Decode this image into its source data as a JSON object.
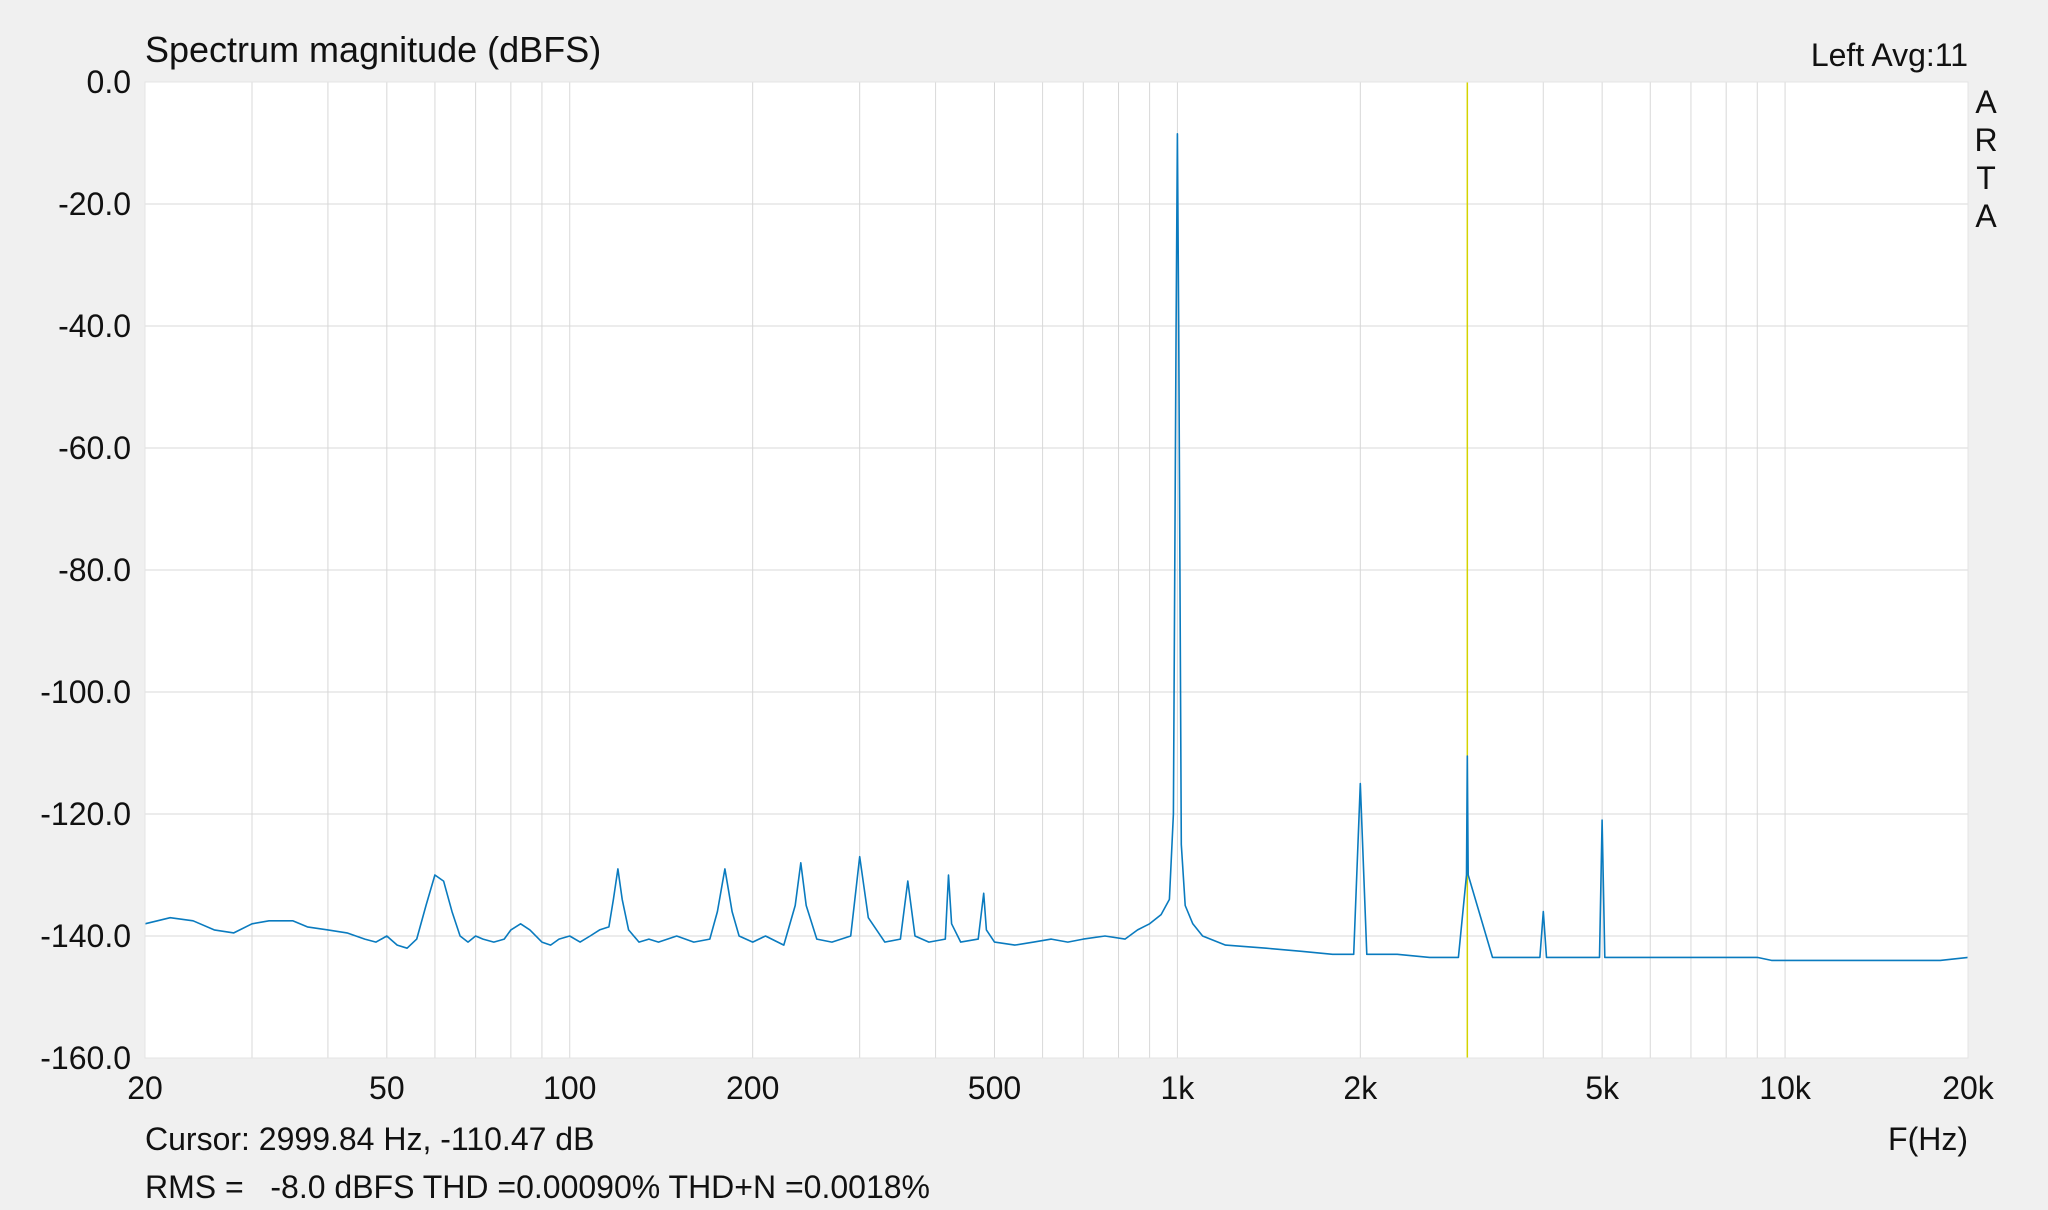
{
  "chart_data": {
    "type": "line",
    "title": "Spectrum magnitude (dBFS)",
    "channel_label": "Left  Avg:11",
    "watermark": [
      "A",
      "R",
      "T",
      "A"
    ],
    "xlabel": "F(Hz)",
    "ylabel": "",
    "x_scale": "log",
    "xlim": [
      20,
      20000
    ],
    "ylim": [
      -160,
      0
    ],
    "x_ticks": [
      {
        "value": 20,
        "label": "20"
      },
      {
        "value": 50,
        "label": "50"
      },
      {
        "value": 100,
        "label": "100"
      },
      {
        "value": 200,
        "label": "200"
      },
      {
        "value": 500,
        "label": "500"
      },
      {
        "value": 1000,
        "label": "1k"
      },
      {
        "value": 2000,
        "label": "2k"
      },
      {
        "value": 5000,
        "label": "5k"
      },
      {
        "value": 10000,
        "label": "10k"
      },
      {
        "value": 20000,
        "label": "20k"
      }
    ],
    "y_ticks": [
      {
        "value": 0,
        "label": "0.0"
      },
      {
        "value": -20,
        "label": "-20.0"
      },
      {
        "value": -40,
        "label": "-40.0"
      },
      {
        "value": -60,
        "label": "-60.0"
      },
      {
        "value": -80,
        "label": "-80.0"
      },
      {
        "value": -100,
        "label": "-100.0"
      },
      {
        "value": -120,
        "label": "-120.0"
      },
      {
        "value": -140,
        "label": "-140.0"
      },
      {
        "value": -160,
        "label": "-160.0"
      }
    ],
    "grid": true,
    "cursor": {
      "frequency": 2999.84,
      "level": -110.47,
      "label": "Cursor: 2999.84 Hz, -110.47 dB"
    },
    "measurement_text": "RMS =   -8.0 dBFS THD =0.00090% THD+N =0.0018%",
    "colors": {
      "trace": "#0a7bbf",
      "cursor": "#d4d400",
      "measurement": "#c8141e",
      "plot_bg": "#ffffff",
      "page_bg": "#f0f0f0",
      "grid": "#d8d8d8"
    },
    "series": [
      {
        "x": [
          20,
          22,
          24,
          26,
          28,
          30,
          32,
          35,
          37,
          40,
          43,
          46,
          48,
          50,
          52,
          54,
          56,
          58,
          60,
          62,
          64,
          66,
          68,
          70,
          72,
          75,
          78,
          80,
          83,
          86,
          90,
          93,
          96,
          100,
          104,
          108,
          112,
          116,
          118,
          120,
          122,
          125,
          130,
          135,
          140,
          150,
          160,
          170,
          175,
          180,
          185,
          190,
          200,
          210,
          225,
          235,
          240,
          245,
          255,
          270,
          290,
          300,
          310,
          330,
          350,
          360,
          370,
          390,
          415,
          420,
          425,
          440,
          470,
          480,
          485,
          500,
          540,
          580,
          620,
          660,
          700,
          760,
          820,
          860,
          900,
          940,
          970,
          985,
          995,
          1000,
          1005,
          1015,
          1030,
          1060,
          1100,
          1200,
          1400,
          1600,
          1800,
          1950,
          2000,
          2050,
          2300,
          2600,
          2900,
          2990,
          3000,
          3010,
          3300,
          3700,
          3950,
          4000,
          4050,
          4500,
          4950,
          5000,
          5050,
          6000,
          7000,
          8000,
          9000,
          9500,
          10000,
          12000,
          14000,
          16000,
          18000,
          20000
        ],
        "y": [
          -138,
          -137,
          -137.5,
          -139,
          -139.5,
          -138,
          -137.5,
          -137.5,
          -138.5,
          -139,
          -139.5,
          -140.5,
          -141,
          -140,
          -141.5,
          -142,
          -140.5,
          -135,
          -130,
          -131,
          -136,
          -140,
          -141,
          -140,
          -140.5,
          -141,
          -140.5,
          -139,
          -138,
          -139,
          -141,
          -141.5,
          -140.5,
          -140,
          -141,
          -140,
          -139,
          -138.5,
          -134,
          -129,
          -134,
          -139,
          -141,
          -140.5,
          -141,
          -140,
          -141,
          -140.5,
          -136,
          -129,
          -136,
          -140,
          -141,
          -140,
          -141.5,
          -135,
          -128,
          -135,
          -140.5,
          -141,
          -140,
          -127,
          -137,
          -141,
          -140.5,
          -131,
          -140,
          -141,
          -140.5,
          -130,
          -138,
          -141,
          -140.5,
          -133,
          -139,
          -141,
          -141.5,
          -141,
          -140.5,
          -141,
          -140.5,
          -140,
          -140.5,
          -139,
          -138,
          -136.5,
          -134,
          -120,
          -40,
          -8.5,
          -40,
          -125,
          -135,
          -138,
          -140,
          -141.5,
          -142,
          -142.5,
          -143,
          -143,
          -115,
          -143,
          -143,
          -143.5,
          -143.5,
          -130,
          -110.5,
          -130,
          -143.5,
          -143.5,
          -143.5,
          -136,
          -143.5,
          -143.5,
          -143.5,
          -121,
          -143.5,
          -143.5,
          -143.5,
          -143.5,
          -143.5,
          -144,
          -144,
          -144,
          -144,
          -144,
          -144,
          -143.5
        ]
      }
    ]
  }
}
